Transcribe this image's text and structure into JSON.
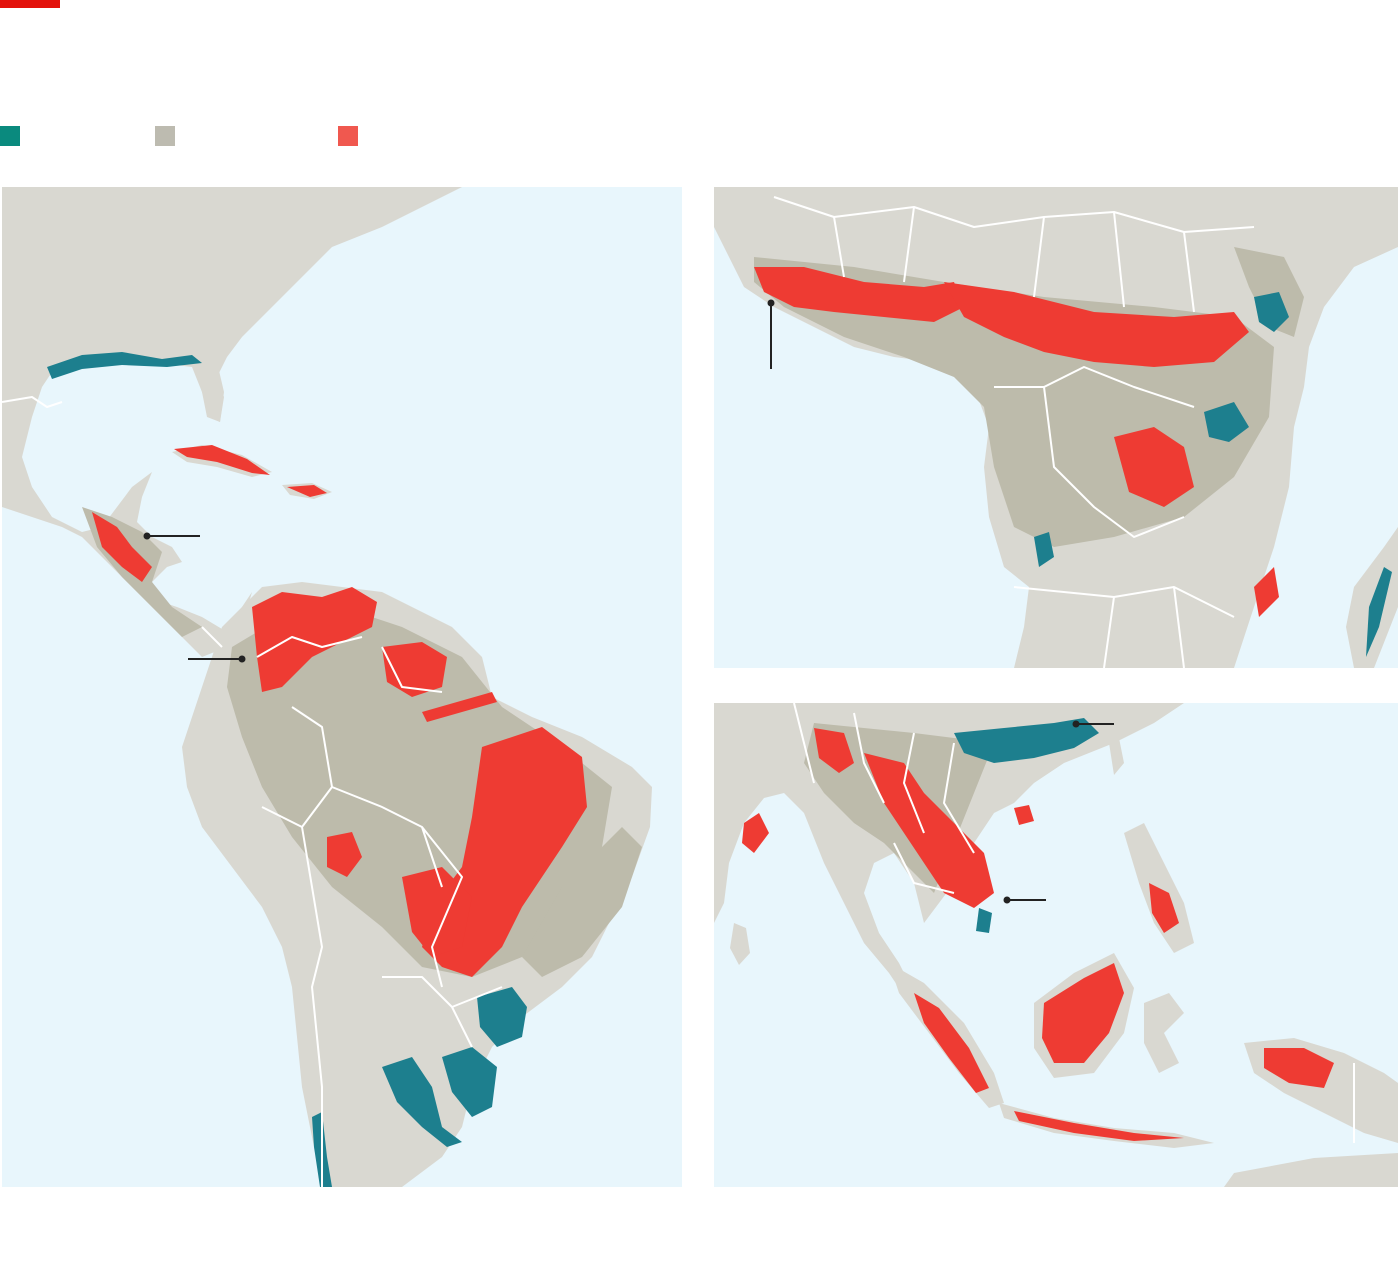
{
  "colors": {
    "brand": "#e3120b",
    "ocean": "#e8f6fc",
    "land": "#d9d8d1",
    "forest": "#bdbbab",
    "gain": "#1d7f8e",
    "loss": "#ee3b33",
    "legend_gain": "#0a8a7e",
    "legend_forest": "#bdbbb0",
    "legend_loss": "#f0584f",
    "borders": "#ffffff",
    "leader": "#222222"
  },
  "legend": [
    {
      "swatch": "gain-swatch",
      "color": "#0a8a7e"
    },
    {
      "swatch": "forest-swatch",
      "color": "#bdbbb0"
    },
    {
      "swatch": "loss-swatch",
      "color": "#f0584f"
    }
  ]
}
